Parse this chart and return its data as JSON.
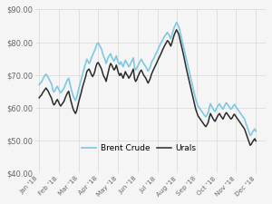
{
  "title": "",
  "ylabel": "",
  "xlabel": "",
  "ylim": [
    40,
    90
  ],
  "yticks": [
    40,
    50,
    60,
    70,
    80,
    90
  ],
  "ytick_labels": [
    "$40.00",
    "$50.00",
    "$60.00",
    "$70.00",
    "$80.00",
    "$90.00"
  ],
  "xtick_labels": [
    "Jan '18",
    "Feb '18",
    "Mar '18",
    "Apr '18",
    "May '18",
    "Jun '18",
    "Jul '18",
    "Aug '18",
    "Sep '18",
    "Oct '18",
    "Nov '18",
    "Dec '18"
  ],
  "brent_color": "#7ec8e3",
  "urals_color": "#2a2a2a",
  "background_color": "#f5f5f5",
  "grid_color": "#d8d8d8",
  "legend_brent": "Brent Crude",
  "legend_urals": "Urals",
  "brent": [
    67.0,
    67.5,
    67.8,
    68.5,
    69.2,
    69.8,
    70.2,
    69.8,
    69.2,
    68.5,
    67.8,
    67.2,
    65.5,
    64.8,
    65.2,
    66.0,
    66.5,
    65.8,
    65.0,
    64.5,
    65.0,
    65.5,
    66.0,
    67.0,
    67.8,
    68.5,
    69.0,
    67.5,
    66.0,
    64.8,
    63.5,
    62.8,
    62.2,
    63.0,
    64.5,
    66.0,
    67.2,
    68.5,
    69.8,
    71.0,
    72.5,
    73.5,
    74.8,
    74.2,
    73.5,
    74.0,
    75.2,
    76.0,
    76.8,
    77.5,
    78.5,
    79.5,
    79.8,
    79.2,
    78.5,
    77.8,
    76.5,
    75.5,
    74.8,
    73.5,
    74.5,
    75.5,
    76.0,
    76.5,
    75.5,
    74.8,
    74.2,
    75.0,
    75.8,
    74.5,
    73.8,
    73.2,
    74.0,
    73.2,
    72.5,
    73.5,
    74.5,
    73.8,
    73.2,
    72.5,
    73.0,
    73.8,
    74.5,
    75.2,
    72.5,
    71.5,
    72.0,
    72.8,
    73.5,
    74.2,
    74.8,
    74.2,
    73.5,
    73.0,
    72.5,
    71.8,
    71.2,
    71.8,
    72.5,
    73.8,
    74.5,
    75.0,
    75.8,
    76.5,
    77.2,
    78.0,
    78.8,
    79.5,
    80.2,
    80.8,
    81.5,
    82.0,
    82.5,
    83.0,
    82.5,
    81.8,
    81.0,
    82.2,
    83.5,
    84.5,
    85.2,
    86.0,
    85.5,
    84.8,
    83.5,
    82.0,
    80.5,
    79.0,
    77.5,
    76.0,
    74.5,
    73.0,
    71.5,
    70.0,
    68.5,
    67.0,
    65.5,
    64.0,
    62.5,
    61.5,
    60.5,
    60.0,
    59.5,
    59.0,
    58.5,
    58.0,
    57.5,
    57.2,
    57.8,
    58.5,
    60.0,
    61.2,
    60.5,
    59.8,
    59.2,
    58.8,
    59.5,
    60.2,
    60.8,
    61.2,
    60.5,
    60.0,
    59.5,
    60.2,
    61.0,
    61.5,
    61.0,
    60.5,
    60.0,
    59.5,
    59.8,
    60.5,
    61.0,
    60.5,
    60.0,
    59.5,
    59.0,
    58.5,
    58.0,
    57.5,
    57.0,
    56.5,
    55.5,
    54.5,
    53.5,
    52.5,
    51.5,
    51.8,
    52.5,
    53.0,
    53.5,
    52.8
  ],
  "urals": [
    63.0,
    63.5,
    63.8,
    64.5,
    65.0,
    65.5,
    66.0,
    65.5,
    65.0,
    64.2,
    63.5,
    62.8,
    61.5,
    60.8,
    61.2,
    62.0,
    62.5,
    61.8,
    61.0,
    60.5,
    61.0,
    61.5,
    62.0,
    63.0,
    63.8,
    64.5,
    65.0,
    63.5,
    62.0,
    60.8,
    59.5,
    58.8,
    58.2,
    59.0,
    60.5,
    62.0,
    63.2,
    64.5,
    66.0,
    67.2,
    68.5,
    69.5,
    71.0,
    71.5,
    71.8,
    71.0,
    70.2,
    69.5,
    70.0,
    71.0,
    72.5,
    73.5,
    73.8,
    73.2,
    72.5,
    71.8,
    70.5,
    69.5,
    69.0,
    68.0,
    69.5,
    71.0,
    72.5,
    73.5,
    73.0,
    72.2,
    71.5,
    72.0,
    73.0,
    71.8,
    70.5,
    69.8,
    70.5,
    69.8,
    69.0,
    70.0,
    71.0,
    70.2,
    69.8,
    69.0,
    69.5,
    70.2,
    71.0,
    71.8,
    69.0,
    68.0,
    68.5,
    69.5,
    70.2,
    71.0,
    71.5,
    70.8,
    70.0,
    69.5,
    69.0,
    68.2,
    67.5,
    68.2,
    69.0,
    70.2,
    71.0,
    71.8,
    72.5,
    73.2,
    74.0,
    74.8,
    75.5,
    76.2,
    77.0,
    77.8,
    78.5,
    79.2,
    79.8,
    80.5,
    80.2,
    79.5,
    78.8,
    79.8,
    81.0,
    82.2,
    83.0,
    83.8,
    83.2,
    82.5,
    81.0,
    79.5,
    78.0,
    76.5,
    74.8,
    73.2,
    71.5,
    70.0,
    68.5,
    67.0,
    65.5,
    64.0,
    62.5,
    61.0,
    59.5,
    58.5,
    57.5,
    57.0,
    56.5,
    56.0,
    55.5,
    55.0,
    54.5,
    54.2,
    54.8,
    55.5,
    57.0,
    58.2,
    57.5,
    56.8,
    56.2,
    55.8,
    56.5,
    57.2,
    57.8,
    58.2,
    57.5,
    57.0,
    56.5,
    57.2,
    58.0,
    58.5,
    58.0,
    57.5,
    57.0,
    56.5,
    56.8,
    57.5,
    58.0,
    57.5,
    57.0,
    56.5,
    56.0,
    55.5,
    55.0,
    54.5,
    54.0,
    53.5,
    52.5,
    51.5,
    50.5,
    49.5,
    48.5,
    48.8,
    49.5,
    50.0,
    50.5,
    49.8
  ]
}
